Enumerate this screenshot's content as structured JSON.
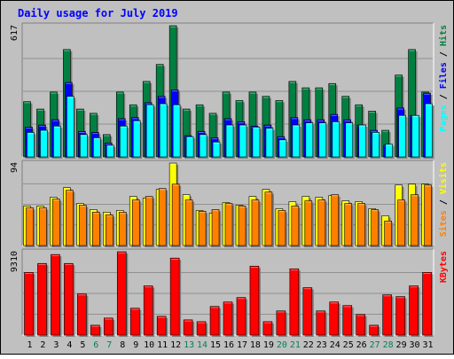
{
  "chart_data": {
    "type": "bar",
    "title": "Daily usage for July 2019",
    "categories": [
      "1",
      "2",
      "3",
      "4",
      "5",
      "6",
      "7",
      "8",
      "9",
      "10",
      "11",
      "12",
      "13",
      "14",
      "15",
      "16",
      "17",
      "18",
      "19",
      "20",
      "21",
      "22",
      "23",
      "24",
      "25",
      "26",
      "27",
      "28",
      "29",
      "30",
      "31"
    ],
    "weekend_days": [
      "6",
      "7",
      "13",
      "14",
      "20",
      "21",
      "27",
      "28"
    ],
    "panels": [
      {
        "key": "top",
        "ymax_label": "617",
        "ylim": [
          0,
          617
        ],
        "legend": [
          "Pages",
          "Files",
          "Hits"
        ],
        "series": [
          {
            "name": "Hits",
            "values": [
              260,
              225,
              305,
              505,
              225,
              205,
              105,
              305,
              245,
              355,
              435,
              617,
              225,
              245,
              205,
              305,
              265,
              305,
              285,
              265,
              355,
              325,
              325,
              345,
              285,
              245,
              215,
              125,
              385,
              505,
              305
            ]
          },
          {
            "name": "Files",
            "values": [
              140,
              150,
              175,
              350,
              120,
              115,
              65,
              180,
              185,
              255,
              285,
              315,
              100,
              120,
              90,
              180,
              165,
              145,
              150,
              95,
              185,
              175,
              175,
              200,
              175,
              150,
              125,
              55,
              230,
              195,
              300
            ]
          },
          {
            "name": "Pages",
            "values": [
              115,
              125,
              145,
              285,
              105,
              90,
              55,
              145,
              170,
              245,
              250,
              245,
              95,
              105,
              70,
              150,
              150,
              140,
              135,
              80,
              150,
              160,
              160,
              165,
              160,
              150,
              115,
              60,
              195,
              195,
              250
            ]
          }
        ]
      },
      {
        "key": "mid",
        "ymax_label": "94",
        "ylim": [
          0,
          94
        ],
        "legend": [
          "Sites",
          "Visits"
        ],
        "series": [
          {
            "name": "Visits",
            "values": [
              45,
              45,
              55,
              66,
              48,
              41,
              38,
              40,
              56,
              54,
              64,
              94,
              58,
              40,
              37,
              49,
              46,
              56,
              64,
              42,
              50,
              56,
              55,
              57,
              51,
              50,
              42,
              34,
              69,
              70,
              70
            ]
          },
          {
            "name": "Sites",
            "values": [
              43,
              43,
              53,
              63,
              46,
              38,
              35,
              38,
              52,
              56,
              65,
              70,
              52,
              39,
              41,
              48,
              45,
              52,
              61,
              40,
              45,
              51,
              52,
              58,
              48,
              48,
              41,
              28,
              52,
              58,
              69
            ]
          }
        ]
      },
      {
        "key": "bottom",
        "ymax_label": "9310",
        "ylim": [
          0,
          9310
        ],
        "legend": [
          "KBytes"
        ],
        "series": [
          {
            "name": "KBytes",
            "values": [
              7000,
              8000,
              9000,
              8000,
              4600,
              1100,
              1900,
              9310,
              3000,
              5500,
              2100,
              8600,
              1700,
              1500,
              3200,
              3700,
              4200,
              7700,
              1500,
              2700,
              7400,
              5300,
              2700,
              3700,
              3300,
              2300,
              1100,
              4500,
              4300,
              5500,
              7000
            ]
          }
        ]
      }
    ],
    "grid": true,
    "colors": {
      "hits": "#008040",
      "files": "#0000ff",
      "pages": "#00ffff",
      "visits": "#ffff00",
      "sites": "#ff8000",
      "kbytes": "#ff0000",
      "title": "#0000ff",
      "weekend_label": "#00805c",
      "weekday_label": "#000000",
      "plot_bg": "#c0c0c0"
    }
  }
}
